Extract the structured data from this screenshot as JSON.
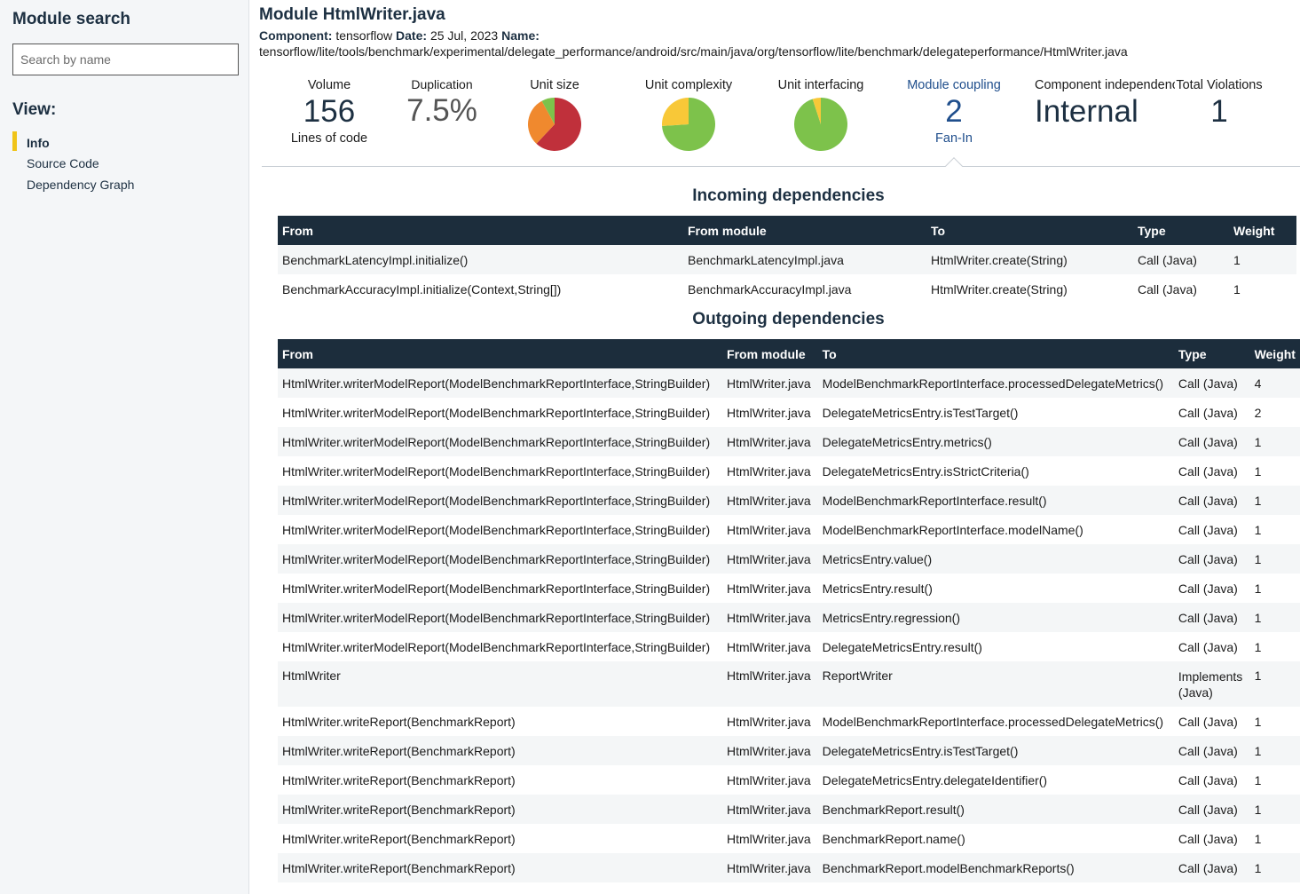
{
  "sidebar": {
    "title": "Module search",
    "search_placeholder": "Search by name",
    "view_title": "View:",
    "items": [
      {
        "label": "Info",
        "active": true
      },
      {
        "label": "Source Code",
        "active": false
      },
      {
        "label": "Dependency Graph",
        "active": false
      }
    ]
  },
  "header": {
    "title": "Module HtmlWriter.java",
    "component_label": "Component:",
    "component_value": "tensorflow",
    "date_label": "Date:",
    "date_value": "25 Jul, 2023",
    "name_label": "Name:",
    "name_value": "tensorflow/lite/tools/benchmark/experimental/delegate_performance/android/src/main/java/org/tensorflow/lite/benchmark/delegateperformance/HtmlWriter.java"
  },
  "metrics": {
    "volume": {
      "label": "Volume",
      "value": "156",
      "sub": "Lines of code"
    },
    "duplication": {
      "label": "Duplication",
      "value": "7.5%"
    },
    "unit_size": {
      "label": "Unit size"
    },
    "unit_complexity": {
      "label": "Unit complexity"
    },
    "unit_interfacing": {
      "label": "Unit interfacing"
    },
    "module_coupling": {
      "label": "Module coupling",
      "value": "2",
      "sub": "Fan-In"
    },
    "component_independence": {
      "label": "Component independence",
      "value": "Internal"
    },
    "total_violations": {
      "label": "Total Violations",
      "value": "1"
    }
  },
  "colors": {
    "red": "#c0303b",
    "orange": "#f0892e",
    "yellow": "#f8c838",
    "green": "#7dc24b",
    "header_bg": "#1c2d3c",
    "accent": "#f0c419"
  },
  "pies": {
    "unit_size": [
      {
        "color": "red",
        "fraction": 0.62
      },
      {
        "color": "orange",
        "fraction": 0.3
      },
      {
        "color": "green",
        "fraction": 0.08
      }
    ],
    "unit_complexity": [
      {
        "color": "green",
        "fraction": 0.74
      },
      {
        "color": "yellow",
        "fraction": 0.26
      }
    ],
    "unit_interfacing": [
      {
        "color": "green",
        "fraction": 0.95
      },
      {
        "color": "yellow",
        "fraction": 0.05
      }
    ]
  },
  "incoming": {
    "title": "Incoming dependencies",
    "columns": [
      "From",
      "From module",
      "To",
      "Type",
      "Weight"
    ],
    "rows": [
      [
        "BenchmarkLatencyImpl.initialize()",
        "BenchmarkLatencyImpl.java",
        "HtmlWriter.create(String)",
        "Call (Java)",
        "1"
      ],
      [
        "BenchmarkAccuracyImpl.initialize(Context,String[])",
        "BenchmarkAccuracyImpl.java",
        "HtmlWriter.create(String)",
        "Call (Java)",
        "1"
      ]
    ]
  },
  "outgoing": {
    "title": "Outgoing dependencies",
    "columns": [
      "From",
      "From module",
      "To",
      "Type",
      "Weight"
    ],
    "rows": [
      [
        "HtmlWriter.writerModelReport(ModelBenchmarkReportInterface,StringBuilder)",
        "HtmlWriter.java",
        "ModelBenchmarkReportInterface.processedDelegateMetrics()",
        "Call (Java)",
        "4"
      ],
      [
        "HtmlWriter.writerModelReport(ModelBenchmarkReportInterface,StringBuilder)",
        "HtmlWriter.java",
        "DelegateMetricsEntry.isTestTarget()",
        "Call (Java)",
        "2"
      ],
      [
        "HtmlWriter.writerModelReport(ModelBenchmarkReportInterface,StringBuilder)",
        "HtmlWriter.java",
        "DelegateMetricsEntry.metrics()",
        "Call (Java)",
        "1"
      ],
      [
        "HtmlWriter.writerModelReport(ModelBenchmarkReportInterface,StringBuilder)",
        "HtmlWriter.java",
        "DelegateMetricsEntry.isStrictCriteria()",
        "Call (Java)",
        "1"
      ],
      [
        "HtmlWriter.writerModelReport(ModelBenchmarkReportInterface,StringBuilder)",
        "HtmlWriter.java",
        "ModelBenchmarkReportInterface.result()",
        "Call (Java)",
        "1"
      ],
      [
        "HtmlWriter.writerModelReport(ModelBenchmarkReportInterface,StringBuilder)",
        "HtmlWriter.java",
        "ModelBenchmarkReportInterface.modelName()",
        "Call (Java)",
        "1"
      ],
      [
        "HtmlWriter.writerModelReport(ModelBenchmarkReportInterface,StringBuilder)",
        "HtmlWriter.java",
        "MetricsEntry.value()",
        "Call (Java)",
        "1"
      ],
      [
        "HtmlWriter.writerModelReport(ModelBenchmarkReportInterface,StringBuilder)",
        "HtmlWriter.java",
        "MetricsEntry.result()",
        "Call (Java)",
        "1"
      ],
      [
        "HtmlWriter.writerModelReport(ModelBenchmarkReportInterface,StringBuilder)",
        "HtmlWriter.java",
        "MetricsEntry.regression()",
        "Call (Java)",
        "1"
      ],
      [
        "HtmlWriter.writerModelReport(ModelBenchmarkReportInterface,StringBuilder)",
        "HtmlWriter.java",
        "DelegateMetricsEntry.result()",
        "Call (Java)",
        "1"
      ],
      [
        "HtmlWriter",
        "HtmlWriter.java",
        "ReportWriter",
        "Implements (Java)",
        "1"
      ],
      [
        "HtmlWriter.writeReport(BenchmarkReport)",
        "HtmlWriter.java",
        "ModelBenchmarkReportInterface.processedDelegateMetrics()",
        "Call (Java)",
        "1"
      ],
      [
        "HtmlWriter.writeReport(BenchmarkReport)",
        "HtmlWriter.java",
        "DelegateMetricsEntry.isTestTarget()",
        "Call (Java)",
        "1"
      ],
      [
        "HtmlWriter.writeReport(BenchmarkReport)",
        "HtmlWriter.java",
        "DelegateMetricsEntry.delegateIdentifier()",
        "Call (Java)",
        "1"
      ],
      [
        "HtmlWriter.writeReport(BenchmarkReport)",
        "HtmlWriter.java",
        "BenchmarkReport.result()",
        "Call (Java)",
        "1"
      ],
      [
        "HtmlWriter.writeReport(BenchmarkReport)",
        "HtmlWriter.java",
        "BenchmarkReport.name()",
        "Call (Java)",
        "1"
      ],
      [
        "HtmlWriter.writeReport(BenchmarkReport)",
        "HtmlWriter.java",
        "BenchmarkReport.modelBenchmarkReports()",
        "Call (Java)",
        "1"
      ]
    ]
  }
}
